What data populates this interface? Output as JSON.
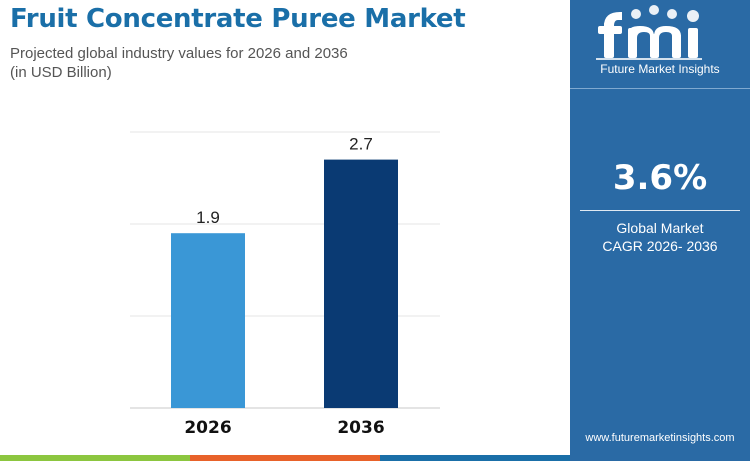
{
  "header": {
    "title": "Fruit Concentrate Puree Market",
    "subtitle_line1": "Projected global industry values for 2026 and 2036",
    "subtitle_line2": "(in USD Billion)"
  },
  "chart_data": {
    "type": "bar",
    "categories": [
      "2026",
      "2036"
    ],
    "values": [
      1.9,
      2.7
    ],
    "colors": [
      "#3a97d6",
      "#0a3a73"
    ],
    "ylim": [
      0,
      3.0
    ],
    "grid": true,
    "title": "",
    "xlabel": "",
    "ylabel": ""
  },
  "sidebar": {
    "logo_name": "Future Market Insights",
    "cagr_value": "3.6%",
    "cagr_label_line1": "Global Market",
    "cagr_label_line2": "CAGR 2026- 2036",
    "website": "www.futuremarketinsights.com",
    "background_color": "#2a6aa5"
  },
  "footer": {
    "bar_colors": [
      "#8cc63f",
      "#e8622a",
      "#1a6fa8",
      "#2a6aa5"
    ]
  }
}
